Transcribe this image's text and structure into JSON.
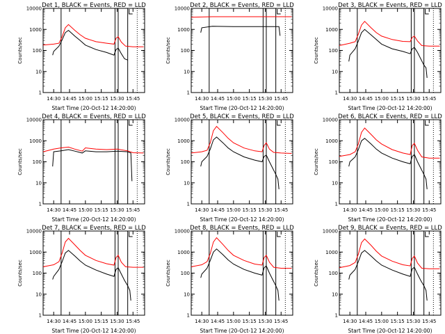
{
  "figure": {
    "axis_ylabel": "Counts/sec",
    "axis_xlabel": "Start Time (20-Oct-12 14:20:00)",
    "x_ticks": [
      "14:30",
      "14:45",
      "15:00",
      "15:15",
      "15:30",
      "15:45"
    ],
    "y_ticks": [
      "1",
      "10",
      "100",
      "1000",
      "10000"
    ],
    "colors": {
      "events": "#000000",
      "lld": "#ff0000",
      "background": "#ffffff"
    }
  },
  "chart_data": [
    {
      "type": "line",
      "title": "Det 1, BLACK = Events, RED = LLD",
      "xlabel": "Start Time (20-Oct-12 14:20:00)",
      "ylabel": "Counts/sec",
      "yscale": "log",
      "ylim": [
        1,
        10000
      ],
      "xlim": [
        "14:20",
        "15:56"
      ],
      "marker_lines": [
        "14:37",
        "15:28",
        "15:31",
        "15:40"
      ],
      "dotted_line": "15:49",
      "series": [
        {
          "name": "BLACK = Events",
          "x": [
            "14:29",
            "14:30",
            "14:35",
            "14:38",
            "14:41",
            "14:44",
            "14:50",
            "14:55",
            "15:00",
            "15:10",
            "15:20",
            "15:27",
            "15:29",
            "15:31",
            "15:34",
            "15:37",
            "15:40"
          ],
          "values": [
            60,
            90,
            160,
            320,
            700,
            900,
            480,
            300,
            180,
            110,
            80,
            60,
            110,
            130,
            70,
            40,
            35
          ]
        },
        {
          "name": "RED = LLD",
          "x": [
            "14:20",
            "14:30",
            "14:35",
            "14:38",
            "14:41",
            "14:44",
            "14:50",
            "14:55",
            "15:00",
            "15:10",
            "15:20",
            "15:27",
            "15:29",
            "15:31",
            "15:34",
            "15:38",
            "15:45",
            "15:55"
          ],
          "values": [
            180,
            200,
            220,
            450,
            1200,
            1700,
            900,
            560,
            380,
            260,
            220,
            200,
            380,
            450,
            250,
            160,
            150,
            150
          ]
        }
      ]
    },
    {
      "type": "line",
      "title": "Det 2, BLACK = Events, RED = LLD",
      "xlabel": "Start Time (20-Oct-12 14:20:00)",
      "ylabel": "Counts/sec",
      "yscale": "log",
      "ylim": [
        1,
        10000
      ],
      "xlim": [
        "14:20",
        "15:56"
      ],
      "marker_lines": [
        "14:37",
        "15:28",
        "15:31",
        "15:40"
      ],
      "dotted_line": "15:49",
      "series": [
        {
          "name": "BLACK = Events",
          "x": [
            "14:29",
            "14:30",
            "14:40",
            "15:00",
            "15:20",
            "15:30",
            "15:40",
            "15:43",
            "15:44"
          ],
          "values": [
            700,
            1200,
            1400,
            1350,
            1350,
            1350,
            1350,
            1350,
            500
          ]
        },
        {
          "name": "RED = LLD",
          "x": [
            "14:20",
            "14:30",
            "14:40",
            "15:00",
            "15:20",
            "15:40",
            "15:55"
          ],
          "values": [
            3800,
            3900,
            4000,
            4000,
            4000,
            4000,
            4000
          ]
        }
      ]
    },
    {
      "type": "line",
      "title": "Det 3, BLACK = Events, RED = LLD",
      "xlabel": "Start Time (20-Oct-12 14:20:00)",
      "ylabel": "Counts/sec",
      "yscale": "log",
      "ylim": [
        1,
        10000
      ],
      "xlim": [
        "14:20",
        "15:56"
      ],
      "marker_lines": [
        "14:37",
        "15:28",
        "15:31",
        "15:40"
      ],
      "dotted_line": "15:49",
      "series": [
        {
          "name": "BLACK = Events",
          "x": [
            "14:29",
            "14:30",
            "14:35",
            "14:38",
            "14:41",
            "14:44",
            "14:50",
            "14:55",
            "15:00",
            "15:10",
            "15:20",
            "15:27",
            "15:29",
            "15:31",
            "15:34",
            "15:37",
            "15:40",
            "15:42",
            "15:43"
          ],
          "values": [
            30,
            60,
            120,
            280,
            700,
            1000,
            550,
            330,
            200,
            120,
            90,
            70,
            120,
            140,
            80,
            40,
            20,
            15,
            5
          ]
        },
        {
          "name": "RED = LLD",
          "x": [
            "14:20",
            "14:30",
            "14:35",
            "14:38",
            "14:41",
            "14:44",
            "14:50",
            "14:55",
            "15:00",
            "15:10",
            "15:20",
            "15:27",
            "15:29",
            "15:31",
            "15:34",
            "15:38",
            "15:45",
            "15:55"
          ],
          "values": [
            170,
            220,
            260,
            600,
            1600,
            2400,
            1200,
            700,
            480,
            330,
            270,
            260,
            420,
            480,
            280,
            170,
            160,
            160
          ]
        }
      ]
    },
    {
      "type": "line",
      "title": "Det 4, BLACK = Events, RED = LLD",
      "xlabel": "Start Time (20-Oct-12 14:20:00)",
      "ylabel": "Counts/sec",
      "yscale": "log",
      "ylim": [
        1,
        10000
      ],
      "xlim": [
        "14:20",
        "15:56"
      ],
      "marker_lines": [
        "14:37",
        "15:28",
        "15:31",
        "15:40"
      ],
      "dotted_line": "15:49",
      "series": [
        {
          "name": "BLACK = Events",
          "x": [
            "14:29",
            "14:30",
            "14:37",
            "14:44",
            "14:50",
            "14:57",
            "15:00",
            "15:10",
            "15:20",
            "15:30",
            "15:40",
            "15:43",
            "15:44"
          ],
          "values": [
            60,
            300,
            330,
            380,
            320,
            260,
            330,
            300,
            300,
            320,
            300,
            260,
            12
          ]
        },
        {
          "name": "RED = LLD",
          "x": [
            "14:20",
            "14:30",
            "14:37",
            "14:44",
            "14:50",
            "14:57",
            "15:00",
            "15:10",
            "15:20",
            "15:30",
            "15:40",
            "15:45",
            "15:55"
          ],
          "values": [
            300,
            400,
            460,
            500,
            400,
            320,
            460,
            400,
            380,
            400,
            330,
            270,
            260
          ]
        }
      ]
    },
    {
      "type": "line",
      "title": "Det 5, BLACK = Events, RED = LLD",
      "xlabel": "Start Time (20-Oct-12 14:20:00)",
      "ylabel": "Counts/sec",
      "yscale": "log",
      "ylim": [
        1,
        10000
      ],
      "xlim": [
        "14:20",
        "15:56"
      ],
      "marker_lines": [
        "14:37",
        "15:28",
        "15:31",
        "15:40"
      ],
      "dotted_line": "15:49",
      "series": [
        {
          "name": "BLACK = Events",
          "x": [
            "14:29",
            "14:30",
            "14:35",
            "14:38",
            "14:41",
            "14:44",
            "14:50",
            "14:55",
            "15:00",
            "15:10",
            "15:20",
            "15:27",
            "15:29",
            "15:31",
            "15:34",
            "15:37",
            "15:40",
            "15:42",
            "15:43"
          ],
          "values": [
            60,
            100,
            180,
            400,
            1100,
            1500,
            800,
            450,
            300,
            170,
            120,
            100,
            180,
            210,
            100,
            50,
            25,
            15,
            5
          ]
        },
        {
          "name": "RED = LLD",
          "x": [
            "14:20",
            "14:30",
            "14:35",
            "14:38",
            "14:41",
            "14:44",
            "14:50",
            "14:55",
            "15:00",
            "15:10",
            "15:20",
            "15:27",
            "15:29",
            "15:31",
            "15:34",
            "15:38",
            "15:45",
            "15:55"
          ],
          "values": [
            260,
            300,
            350,
            800,
            3000,
            4800,
            2400,
            1300,
            800,
            450,
            330,
            300,
            600,
            800,
            400,
            280,
            260,
            250
          ]
        }
      ]
    },
    {
      "type": "line",
      "title": "Det 6, BLACK = Events, RED = LLD",
      "xlabel": "Start Time (20-Oct-12 14:20:00)",
      "ylabel": "Counts/sec",
      "yscale": "log",
      "ylim": [
        1,
        10000
      ],
      "xlim": [
        "14:20",
        "15:56"
      ],
      "marker_lines": [
        "14:37",
        "15:28",
        "15:31",
        "15:40"
      ],
      "dotted_line": "15:49",
      "series": [
        {
          "name": "BLACK = Events",
          "x": [
            "14:29",
            "14:30",
            "14:35",
            "14:38",
            "14:41",
            "14:44",
            "14:50",
            "14:55",
            "15:00",
            "15:10",
            "15:20",
            "15:27",
            "15:29",
            "15:31",
            "15:34",
            "15:37",
            "15:40",
            "15:42",
            "15:43"
          ],
          "values": [
            60,
            100,
            170,
            380,
            1000,
            1300,
            700,
            400,
            260,
            150,
            100,
            80,
            180,
            220,
            100,
            50,
            25,
            15,
            5
          ]
        },
        {
          "name": "RED = LLD",
          "x": [
            "14:20",
            "14:30",
            "14:35",
            "14:38",
            "14:41",
            "14:44",
            "14:50",
            "14:55",
            "15:00",
            "15:10",
            "15:20",
            "15:27",
            "15:29",
            "15:31",
            "15:34",
            "15:38",
            "15:45",
            "15:55"
          ],
          "values": [
            180,
            220,
            300,
            700,
            2500,
            4000,
            2000,
            1100,
            700,
            380,
            260,
            220,
            600,
            750,
            350,
            170,
            150,
            150
          ]
        }
      ]
    },
    {
      "type": "line",
      "title": "Det 7, BLACK = Events, RED = LLD",
      "xlabel": "Start Time (20-Oct-12 14:20:00)",
      "ylabel": "Counts/sec",
      "yscale": "log",
      "ylim": [
        1,
        10000
      ],
      "xlim": [
        "14:20",
        "15:56"
      ],
      "marker_lines": [
        "14:37",
        "15:28",
        "15:31",
        "15:40"
      ],
      "dotted_line": "15:49",
      "series": [
        {
          "name": "BLACK = Events",
          "x": [
            "14:29",
            "14:30",
            "14:35",
            "14:38",
            "14:41",
            "14:44",
            "14:50",
            "14:55",
            "15:00",
            "15:10",
            "15:20",
            "15:27",
            "15:29",
            "15:31",
            "15:34",
            "15:37",
            "15:40",
            "15:42",
            "15:43"
          ],
          "values": [
            50,
            70,
            150,
            350,
            900,
            1200,
            650,
            380,
            240,
            140,
            90,
            70,
            150,
            180,
            90,
            45,
            25,
            15,
            5
          ]
        },
        {
          "name": "RED = LLD",
          "x": [
            "14:20",
            "14:30",
            "14:35",
            "14:38",
            "14:41",
            "14:44",
            "14:50",
            "14:55",
            "15:00",
            "15:10",
            "15:20",
            "15:27",
            "15:29",
            "15:31",
            "15:34",
            "15:38",
            "15:45",
            "15:55"
          ],
          "values": [
            200,
            250,
            350,
            900,
            3000,
            4500,
            2200,
            1200,
            700,
            400,
            280,
            240,
            550,
            700,
            330,
            200,
            190,
            190
          ]
        }
      ]
    },
    {
      "type": "line",
      "title": "Det 8, BLACK = Events, RED = LLD",
      "xlabel": "Start Time (20-Oct-12 14:20:00)",
      "ylabel": "Counts/sec",
      "yscale": "log",
      "ylim": [
        1,
        10000
      ],
      "xlim": [
        "14:20",
        "15:56"
      ],
      "marker_lines": [
        "14:37",
        "15:28",
        "15:31",
        "15:40"
      ],
      "dotted_line": "15:49",
      "series": [
        {
          "name": "BLACK = Events",
          "x": [
            "14:29",
            "14:30",
            "14:35",
            "14:38",
            "14:41",
            "14:44",
            "14:50",
            "14:55",
            "15:00",
            "15:10",
            "15:20",
            "15:27",
            "15:29",
            "15:31",
            "15:34",
            "15:37",
            "15:40",
            "15:42",
            "15:43"
          ],
          "values": [
            60,
            90,
            170,
            400,
            1000,
            1400,
            750,
            420,
            270,
            150,
            100,
            80,
            180,
            220,
            100,
            50,
            25,
            15,
            5
          ]
        },
        {
          "name": "RED = LLD",
          "x": [
            "14:20",
            "14:30",
            "14:35",
            "14:38",
            "14:41",
            "14:44",
            "14:50",
            "14:55",
            "15:00",
            "15:10",
            "15:20",
            "15:27",
            "15:29",
            "15:31",
            "15:34",
            "15:38",
            "15:45",
            "15:55"
          ],
          "values": [
            200,
            250,
            350,
            850,
            3000,
            4800,
            2300,
            1200,
            700,
            400,
            270,
            240,
            550,
            700,
            330,
            190,
            170,
            170
          ]
        }
      ]
    },
    {
      "type": "line",
      "title": "Det 9, BLACK = Events, RED = LLD",
      "xlabel": "Start Time (20-Oct-12 14:20:00)",
      "ylabel": "Counts/sec",
      "yscale": "log",
      "ylim": [
        1,
        10000
      ],
      "xlim": [
        "14:20",
        "15:56"
      ],
      "marker_lines": [
        "14:37",
        "15:28",
        "15:31",
        "15:40"
      ],
      "dotted_line": "15:49",
      "series": [
        {
          "name": "BLACK = Events",
          "x": [
            "14:29",
            "14:30",
            "14:35",
            "14:38",
            "14:41",
            "14:44",
            "14:50",
            "14:55",
            "15:00",
            "15:10",
            "15:20",
            "15:27",
            "15:29",
            "15:31",
            "15:34",
            "15:37",
            "15:40",
            "15:42",
            "15:43"
          ],
          "values": [
            50,
            80,
            150,
            350,
            900,
            1200,
            650,
            380,
            240,
            140,
            90,
            70,
            160,
            190,
            90,
            45,
            25,
            15,
            5
          ]
        },
        {
          "name": "RED = LLD",
          "x": [
            "14:20",
            "14:30",
            "14:35",
            "14:38",
            "14:41",
            "14:44",
            "14:50",
            "14:55",
            "15:00",
            "15:10",
            "15:20",
            "15:27",
            "15:29",
            "15:31",
            "15:34",
            "15:38",
            "15:45",
            "15:55"
          ],
          "values": [
            180,
            230,
            320,
            800,
            2800,
            4200,
            2100,
            1100,
            650,
            370,
            250,
            220,
            500,
            650,
            300,
            170,
            160,
            160
          ]
        }
      ]
    }
  ]
}
